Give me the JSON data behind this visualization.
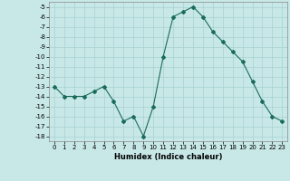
{
  "x": [
    0,
    1,
    2,
    3,
    4,
    5,
    6,
    7,
    8,
    9,
    10,
    11,
    12,
    13,
    14,
    15,
    16,
    17,
    18,
    19,
    20,
    21,
    22,
    23
  ],
  "y": [
    -13,
    -14,
    -14,
    -14,
    -13.5,
    -13,
    -14.5,
    -16.5,
    -16,
    -18,
    -15,
    -10,
    -6,
    -5.5,
    -5,
    -6,
    -7.5,
    -8.5,
    -9.5,
    -10.5,
    -12.5,
    -14.5,
    -16,
    -16.5
  ],
  "line_color": "#1a6b5a",
  "bg_color": "#c8e8e8",
  "grid_color": "#a8d0d0",
  "xlabel": "Humidex (Indice chaleur)",
  "ylim": [
    -18.5,
    -4.5
  ],
  "xlim": [
    -0.5,
    23.5
  ],
  "yticks": [
    -5,
    -6,
    -7,
    -8,
    -9,
    -10,
    -11,
    -12,
    -13,
    -14,
    -15,
    -16,
    -17,
    -18
  ],
  "xticks": [
    0,
    1,
    2,
    3,
    4,
    5,
    6,
    7,
    8,
    9,
    10,
    11,
    12,
    13,
    14,
    15,
    16,
    17,
    18,
    19,
    20,
    21,
    22,
    23
  ],
  "tick_fontsize": 5.0,
  "xlabel_fontsize": 6.0
}
